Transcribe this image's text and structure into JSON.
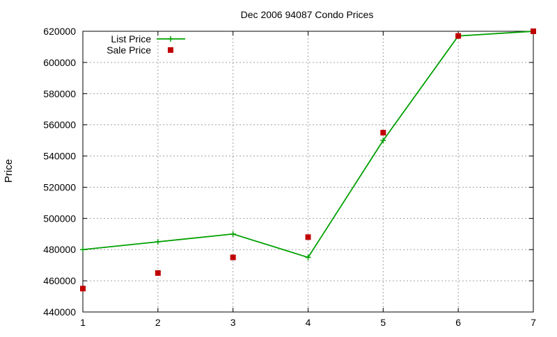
{
  "chart_data": {
    "type": "line",
    "title": "Dec 2006 94087 Condo Prices",
    "xlabel": "",
    "ylabel": "Price",
    "x": [
      1,
      2,
      3,
      4,
      5,
      6,
      7
    ],
    "xlim": [
      1,
      7
    ],
    "ylim": [
      440000,
      620000
    ],
    "xticks": [
      "1",
      "2",
      "3",
      "4",
      "5",
      "6",
      "7"
    ],
    "yticks": [
      "440000",
      "460000",
      "480000",
      "500000",
      "520000",
      "540000",
      "560000",
      "580000",
      "600000",
      "620000"
    ],
    "grid": true,
    "legend_position": "top-left",
    "series": [
      {
        "name": "List Price",
        "style": "line-with-plus-markers",
        "color": "#00a000",
        "values": [
          480000,
          485000,
          490000,
          475000,
          550000,
          617000,
          620000
        ]
      },
      {
        "name": "Sale Price",
        "style": "square-markers",
        "color": "#c00000",
        "values": [
          455000,
          465000,
          475000,
          488000,
          555000,
          617000,
          620000
        ]
      }
    ]
  }
}
